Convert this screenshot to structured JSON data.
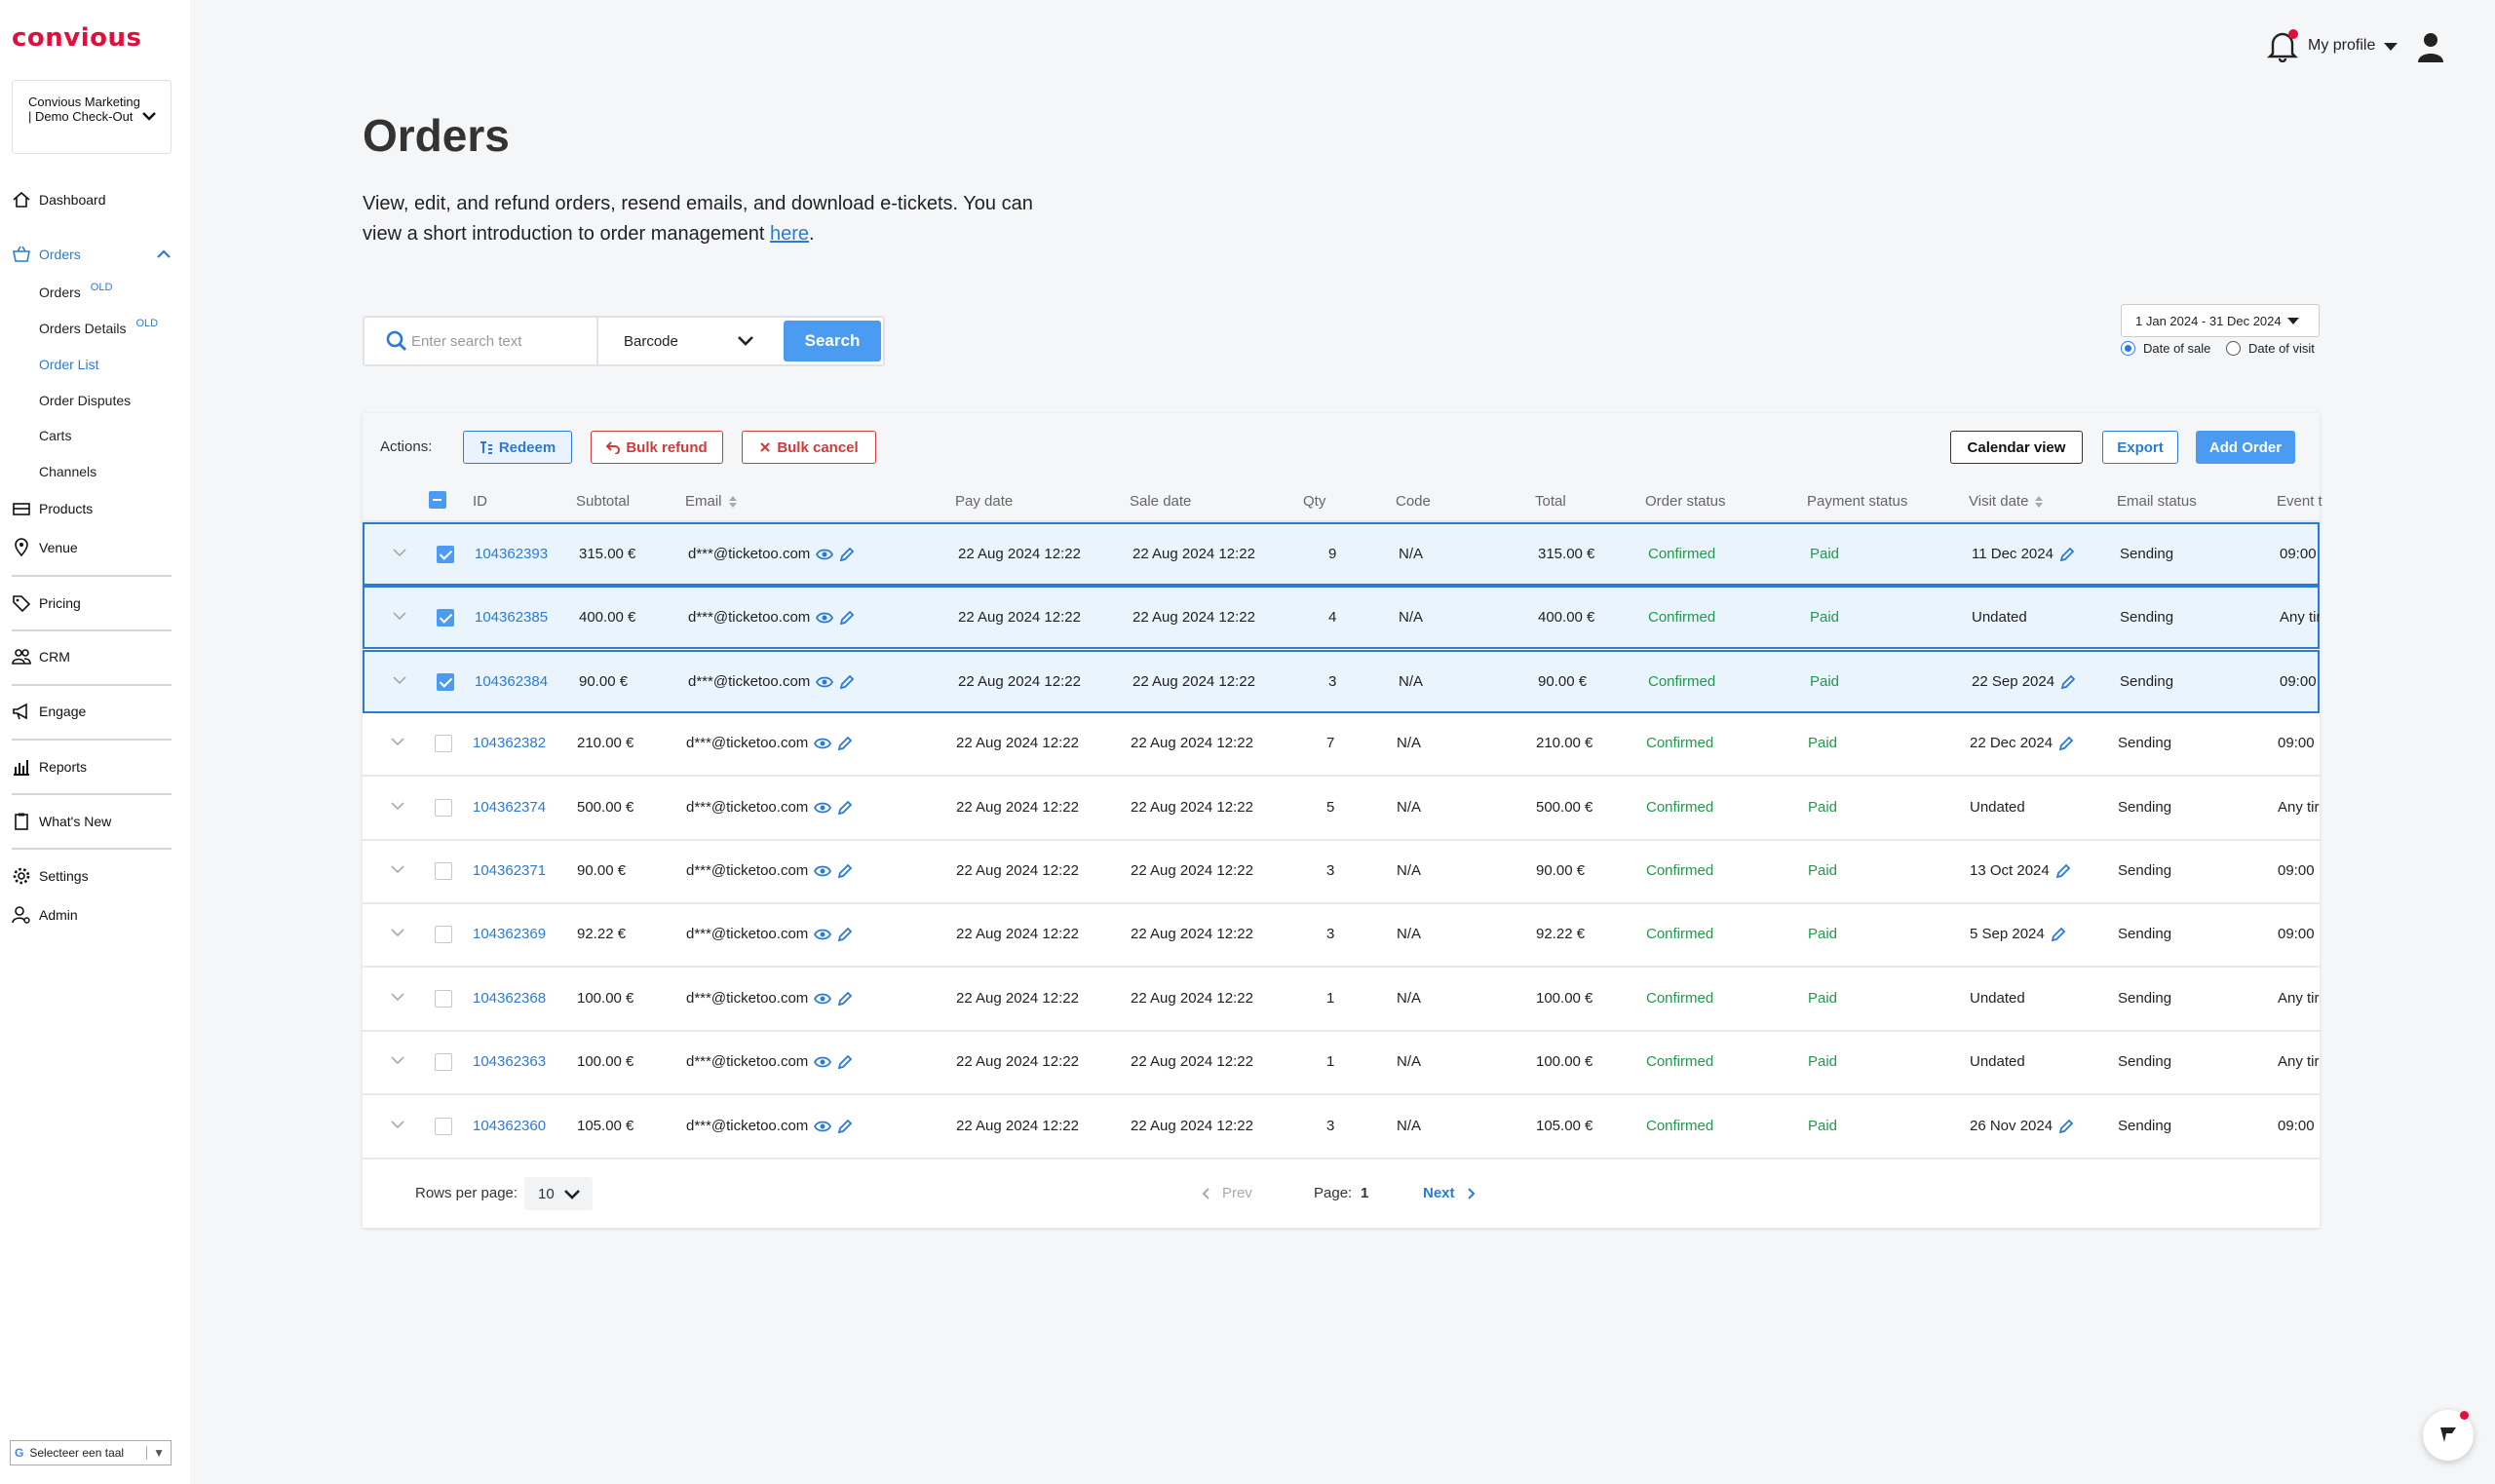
{
  "brand": {
    "logo": "convious",
    "accent": "#e0103c",
    "primary": "#2b7bd6"
  },
  "account": {
    "name": "Convious Marketing | Demo Check-Out"
  },
  "sidebar": {
    "dashboard": "Dashboard",
    "orders": "Orders",
    "sub": [
      {
        "label": "Orders",
        "tag": "OLD"
      },
      {
        "label": "Orders Details",
        "tag": "OLD"
      },
      {
        "label": "Order List",
        "tag": ""
      },
      {
        "label": "Order Disputes",
        "tag": ""
      },
      {
        "label": "Carts",
        "tag": ""
      },
      {
        "label": "Channels",
        "tag": ""
      }
    ],
    "products": "Products",
    "venue": "Venue",
    "pricing": "Pricing",
    "crm": "CRM",
    "engage": "Engage",
    "reports": "Reports",
    "whats_new": "What's New",
    "settings": "Settings",
    "admin": "Admin"
  },
  "language": {
    "label": "Selecteer een taal",
    "g": "G",
    "arrow": "▼"
  },
  "header": {
    "profile": "My profile"
  },
  "page": {
    "title": "Orders",
    "intro": "View, edit, and refund orders, resend emails, and download e-tickets. You can view a short introduction to order management ",
    "intro_link": "here",
    "intro_end": "."
  },
  "search": {
    "placeholder": "Enter search text",
    "type": "Barcode",
    "button": "Search"
  },
  "date_filter": {
    "range": "1 Jan 2024 - 31 Dec 2024",
    "opt_sale": "Date of sale",
    "opt_visit": "Date of visit",
    "selected": "Date of sale"
  },
  "actions": {
    "label": "Actions:",
    "redeem": "Redeem",
    "bulk_refund": "Bulk refund",
    "bulk_cancel": "Bulk cancel",
    "calendar": "Calendar view",
    "export": "Export",
    "add": "Add Order"
  },
  "columns": {
    "id": "ID",
    "subtotal": "Subtotal",
    "email": "Email",
    "pay_date": "Pay date",
    "sale_date": "Sale date",
    "qty": "Qty",
    "code": "Code",
    "total": "Total",
    "order_status": "Order status",
    "payment_status": "Payment status",
    "visit_date": "Visit date",
    "email_status": "Email status",
    "event": "Event t"
  },
  "rows": [
    {
      "id": "104362393",
      "subtotal": "315.00 €",
      "email": "d***@ticketoo.com",
      "pay_date": "22 Aug 2024 12:22",
      "sale_date": "22 Aug 2024 12:22",
      "qty": "9",
      "code": "N/A",
      "total": "315.00 €",
      "order_status": "Confirmed",
      "payment_status": "Paid",
      "visit_date": "11 Dec 2024",
      "email_status": "Sending",
      "event": "09:00",
      "selected": true,
      "edit_visit": true
    },
    {
      "id": "104362385",
      "subtotal": "400.00 €",
      "email": "d***@ticketoo.com",
      "pay_date": "22 Aug 2024 12:22",
      "sale_date": "22 Aug 2024 12:22",
      "qty": "4",
      "code": "N/A",
      "total": "400.00 €",
      "order_status": "Confirmed",
      "payment_status": "Paid",
      "visit_date": "Undated",
      "email_status": "Sending",
      "event": "Any tir",
      "selected": true,
      "edit_visit": false
    },
    {
      "id": "104362384",
      "subtotal": "90.00 €",
      "email": "d***@ticketoo.com",
      "pay_date": "22 Aug 2024 12:22",
      "sale_date": "22 Aug 2024 12:22",
      "qty": "3",
      "code": "N/A",
      "total": "90.00 €",
      "order_status": "Confirmed",
      "payment_status": "Paid",
      "visit_date": "22 Sep 2024",
      "email_status": "Sending",
      "event": "09:00",
      "selected": true,
      "edit_visit": true
    },
    {
      "id": "104362382",
      "subtotal": "210.00 €",
      "email": "d***@ticketoo.com",
      "pay_date": "22 Aug 2024 12:22",
      "sale_date": "22 Aug 2024 12:22",
      "qty": "7",
      "code": "N/A",
      "total": "210.00 €",
      "order_status": "Confirmed",
      "payment_status": "Paid",
      "visit_date": "22 Dec 2024",
      "email_status": "Sending",
      "event": "09:00",
      "selected": false,
      "edit_visit": true
    },
    {
      "id": "104362374",
      "subtotal": "500.00 €",
      "email": "d***@ticketoo.com",
      "pay_date": "22 Aug 2024 12:22",
      "sale_date": "22 Aug 2024 12:22",
      "qty": "5",
      "code": "N/A",
      "total": "500.00 €",
      "order_status": "Confirmed",
      "payment_status": "Paid",
      "visit_date": "Undated",
      "email_status": "Sending",
      "event": "Any tir",
      "selected": false,
      "edit_visit": false
    },
    {
      "id": "104362371",
      "subtotal": "90.00 €",
      "email": "d***@ticketoo.com",
      "pay_date": "22 Aug 2024 12:22",
      "sale_date": "22 Aug 2024 12:22",
      "qty": "3",
      "code": "N/A",
      "total": "90.00 €",
      "order_status": "Confirmed",
      "payment_status": "Paid",
      "visit_date": "13 Oct 2024",
      "email_status": "Sending",
      "event": "09:00",
      "selected": false,
      "edit_visit": true
    },
    {
      "id": "104362369",
      "subtotal": "92.22 €",
      "email": "d***@ticketoo.com",
      "pay_date": "22 Aug 2024 12:22",
      "sale_date": "22 Aug 2024 12:22",
      "qty": "3",
      "code": "N/A",
      "total": "92.22 €",
      "order_status": "Confirmed",
      "payment_status": "Paid",
      "visit_date": "5 Sep 2024",
      "email_status": "Sending",
      "event": "09:00",
      "selected": false,
      "edit_visit": true
    },
    {
      "id": "104362368",
      "subtotal": "100.00 €",
      "email": "d***@ticketoo.com",
      "pay_date": "22 Aug 2024 12:22",
      "sale_date": "22 Aug 2024 12:22",
      "qty": "1",
      "code": "N/A",
      "total": "100.00 €",
      "order_status": "Confirmed",
      "payment_status": "Paid",
      "visit_date": "Undated",
      "email_status": "Sending",
      "event": "Any tir",
      "selected": false,
      "edit_visit": false
    },
    {
      "id": "104362363",
      "subtotal": "100.00 €",
      "email": "d***@ticketoo.com",
      "pay_date": "22 Aug 2024 12:22",
      "sale_date": "22 Aug 2024 12:22",
      "qty": "1",
      "code": "N/A",
      "total": "100.00 €",
      "order_status": "Confirmed",
      "payment_status": "Paid",
      "visit_date": "Undated",
      "email_status": "Sending",
      "event": "Any tir",
      "selected": false,
      "edit_visit": false
    },
    {
      "id": "104362360",
      "subtotal": "105.00 €",
      "email": "d***@ticketoo.com",
      "pay_date": "22 Aug 2024 12:22",
      "sale_date": "22 Aug 2024 12:22",
      "qty": "3",
      "code": "N/A",
      "total": "105.00 €",
      "order_status": "Confirmed",
      "payment_status": "Paid",
      "visit_date": "26 Nov 2024",
      "email_status": "Sending",
      "event": "09:00",
      "selected": false,
      "edit_visit": true
    }
  ],
  "pagination": {
    "rows_label": "Rows per page:",
    "rows_value": "10",
    "prev": "Prev",
    "page_label": "Page:",
    "page": "1",
    "next": "Next"
  }
}
